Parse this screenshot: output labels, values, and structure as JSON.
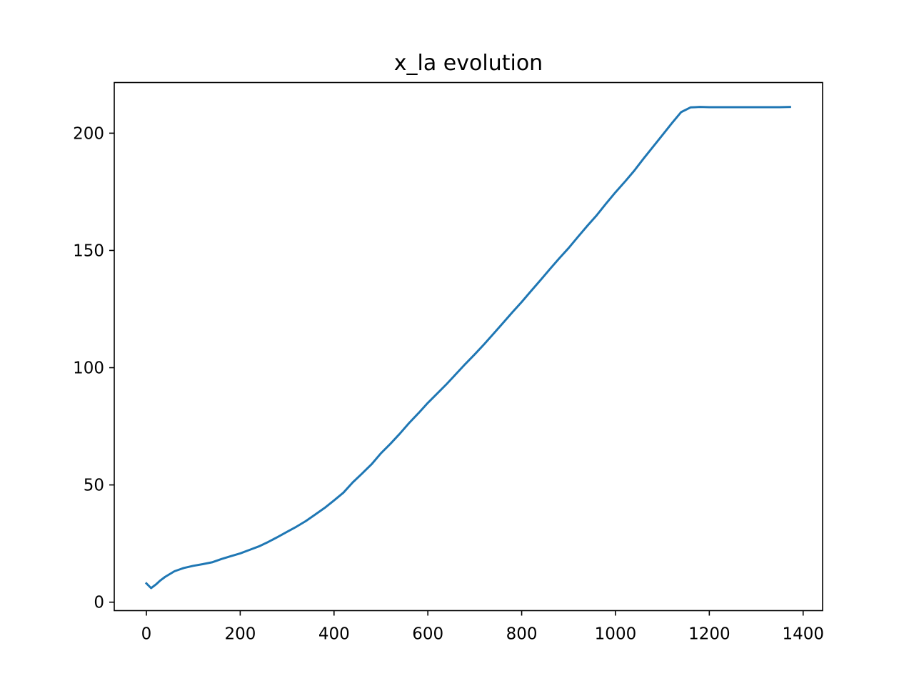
{
  "chart_data": {
    "type": "line",
    "title": "x_la evolution",
    "xlabel": "",
    "ylabel": "",
    "xlim": [
      -68.5,
      1441.5
    ],
    "ylim": [
      -3.6,
      221.6
    ],
    "xticks": [
      0,
      200,
      400,
      600,
      800,
      1000,
      1200,
      1400
    ],
    "yticks": [
      0,
      50,
      100,
      150,
      200
    ],
    "grid": false,
    "legend": "none",
    "series": [
      {
        "color": "#1f77b4",
        "x": [
          0,
          10,
          20,
          30,
          40,
          60,
          80,
          100,
          120,
          140,
          160,
          180,
          200,
          220,
          240,
          260,
          280,
          300,
          320,
          340,
          360,
          380,
          400,
          420,
          440,
          460,
          480,
          500,
          520,
          540,
          560,
          580,
          600,
          620,
          640,
          660,
          680,
          700,
          720,
          740,
          760,
          780,
          800,
          820,
          840,
          860,
          880,
          900,
          920,
          940,
          960,
          980,
          1000,
          1020,
          1040,
          1060,
          1080,
          1100,
          1120,
          1140,
          1160,
          1170,
          1180,
          1200,
          1250,
          1300,
          1350,
          1372
        ],
        "y": [
          8,
          6,
          7.5,
          9.3,
          10.8,
          13.2,
          14.6,
          15.5,
          16.2,
          17,
          18.4,
          19.6,
          20.8,
          22.3,
          23.8,
          25.7,
          27.8,
          30,
          32.2,
          34.6,
          37.4,
          40.2,
          43.4,
          46.7,
          51.1,
          54.9,
          58.8,
          63.5,
          67.5,
          71.8,
          76.4,
          80.6,
          85,
          89,
          93,
          97.3,
          101.6,
          105.7,
          110,
          114.5,
          119,
          123.6,
          128,
          132.7,
          137.3,
          142,
          146.6,
          151,
          155.8,
          160.5,
          165,
          170,
          174.8,
          179.3,
          184,
          189.2,
          194.2,
          199.2,
          204.2,
          209,
          211,
          211.1,
          211.2,
          211.1,
          211.1,
          211.1,
          211.1,
          211.2
        ]
      }
    ]
  }
}
